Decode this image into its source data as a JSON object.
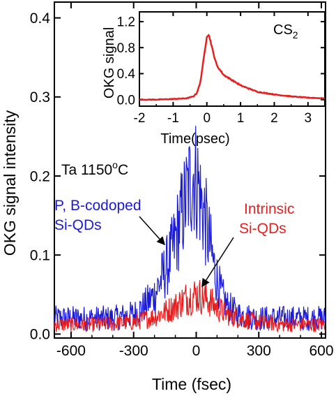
{
  "chart_data": [
    {
      "type": "line",
      "xlabel": "Time (fsec)",
      "ylabel": "OKG signal intensity",
      "xlim": [
        -680,
        620
      ],
      "ylim": [
        -0.005,
        0.42
      ],
      "xticks": [
        -600,
        -300,
        0,
        300,
        600
      ],
      "xtick_labels": [
        "-600",
        "-300",
        "0",
        "300",
        "600"
      ],
      "yticks": [
        0.0,
        0.1,
        0.2,
        0.3,
        0.4
      ],
      "ytick_labels": [
        "0.0",
        "0.1",
        "0.2",
        "0.3",
        "0.4"
      ],
      "grid": false,
      "series": [
        {
          "name": "P, B-codoped Si-QDs",
          "color": "#1a1adb",
          "x": [
            -680,
            -600,
            -500,
            -400,
            -300,
            -250,
            -200,
            -150,
            -120,
            -90,
            -60,
            -40,
            -20,
            -10,
            0,
            10,
            20,
            40,
            60,
            90,
            120,
            150,
            200,
            300,
            400,
            500,
            620
          ],
          "y": [
            0.02,
            0.02,
            0.02,
            0.02,
            0.025,
            0.035,
            0.05,
            0.08,
            0.1,
            0.13,
            0.16,
            0.18,
            0.2,
            0.205,
            0.195,
            0.19,
            0.17,
            0.15,
            0.12,
            0.08,
            0.05,
            0.035,
            0.025,
            0.02,
            0.02,
            0.02,
            0.02
          ]
        },
        {
          "name": "Intrinsic Si-QDs",
          "color": "#e81e1e",
          "x": [
            -680,
            -600,
            -500,
            -400,
            -300,
            -200,
            -150,
            -100,
            -50,
            0,
            50,
            100,
            150,
            200,
            300,
            400,
            500,
            620
          ],
          "y": [
            0.012,
            0.012,
            0.012,
            0.013,
            0.015,
            0.022,
            0.028,
            0.035,
            0.045,
            0.05,
            0.045,
            0.033,
            0.025,
            0.02,
            0.015,
            0.012,
            0.012,
            0.012
          ]
        }
      ],
      "annotations": [
        {
          "text": "Ta 1150",
          "sup": "o",
          "tail": "C"
        },
        {
          "text": "P, B-codoped",
          "line2": "Si-QDs",
          "color": "#1a1adb"
        },
        {
          "text": "Intrinsic",
          "line2": "Si-QDs",
          "color": "#e81e1e"
        }
      ]
    },
    {
      "type": "line",
      "xlabel": "Time(psec)",
      "ylabel": "OKG signal",
      "xlim": [
        -2,
        3.5
      ],
      "ylim": [
        -0.1,
        1.35
      ],
      "xticks": [
        -2,
        -1,
        0,
        1,
        2,
        3
      ],
      "xtick_labels": [
        "-2",
        "-1",
        "0",
        "1",
        "2",
        "3"
      ],
      "yticks": [
        0.0,
        0.4,
        0.8,
        1.2
      ],
      "ytick_labels": [
        "0.0",
        "0.4",
        "0.8",
        "1.2"
      ],
      "grid": false,
      "series": [
        {
          "name": "CS",
          "name_sub": "2",
          "color": "#e81e1e",
          "x": [
            -2,
            -1.5,
            -1,
            -0.6,
            -0.4,
            -0.3,
            -0.2,
            -0.1,
            0,
            0.05,
            0.1,
            0.2,
            0.3,
            0.5,
            0.75,
            1,
            1.5,
            2,
            2.5,
            3,
            3.5
          ],
          "y": [
            0.0,
            0.0,
            0.01,
            0.02,
            0.05,
            0.1,
            0.25,
            0.6,
            0.98,
            1.0,
            0.92,
            0.7,
            0.52,
            0.38,
            0.3,
            0.22,
            0.12,
            0.08,
            0.05,
            0.03,
            0.02
          ]
        }
      ]
    }
  ]
}
